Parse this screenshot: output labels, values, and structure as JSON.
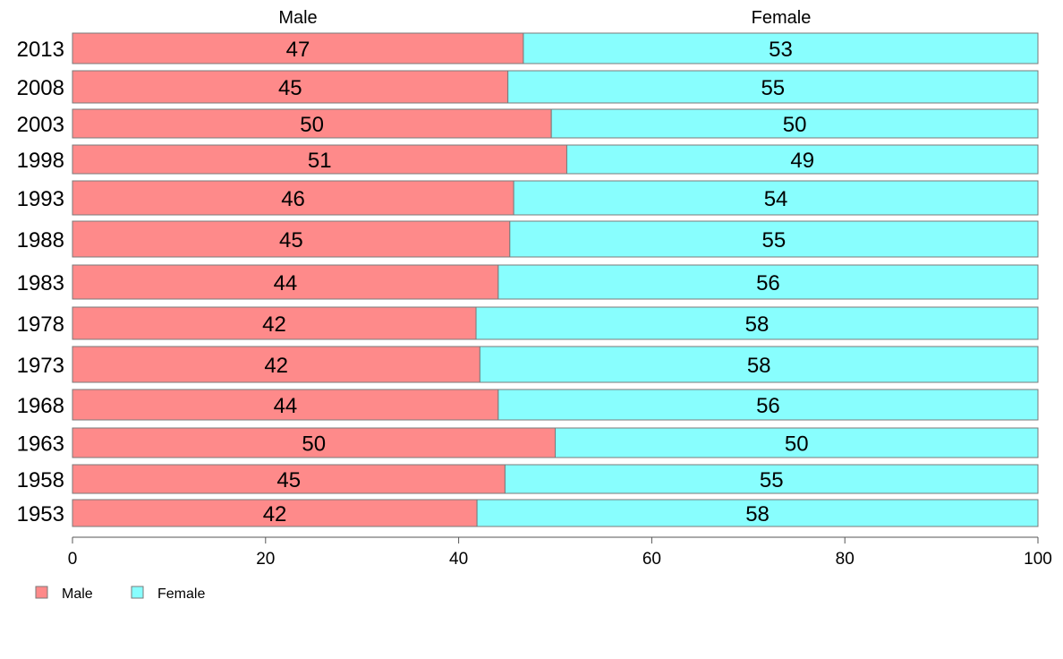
{
  "chart_data": {
    "type": "bar",
    "orientation": "horizontal",
    "stacked": true,
    "categories": [
      "2013",
      "2008",
      "2003",
      "1998",
      "1993",
      "1988",
      "1983",
      "1978",
      "1973",
      "1968",
      "1963",
      "1958",
      "1953"
    ],
    "series": [
      {
        "name": "Male",
        "color": "#fe8a8a",
        "values": [
          46.7,
          45.1,
          49.6,
          51.2,
          45.7,
          45.3,
          44.1,
          41.8,
          42.2,
          44.1,
          50.0,
          44.8,
          41.9
        ],
        "labels": [
          "47",
          "45",
          "50",
          "51",
          "46",
          "45",
          "44",
          "42",
          "42",
          "44",
          "50",
          "45",
          "42"
        ]
      },
      {
        "name": "Female",
        "color": "#88fefe",
        "values": [
          53.3,
          54.9,
          50.4,
          48.8,
          54.3,
          54.7,
          55.9,
          58.2,
          57.8,
          55.9,
          50.0,
          55.2,
          58.1
        ],
        "labels": [
          "53",
          "55",
          "50",
          "49",
          "54",
          "55",
          "56",
          "58",
          "58",
          "56",
          "50",
          "55",
          "58"
        ]
      }
    ],
    "xlim": [
      0,
      100
    ],
    "x_ticks": [
      "0",
      "20",
      "40",
      "60",
      "80",
      "100"
    ],
    "column_headers": [
      "Male",
      "Female"
    ],
    "legend": {
      "position": "bottom-left",
      "items": [
        {
          "label": "Male",
          "color": "#fe8a8a"
        },
        {
          "label": "Female",
          "color": "#88fefe"
        }
      ]
    },
    "grid": false
  }
}
